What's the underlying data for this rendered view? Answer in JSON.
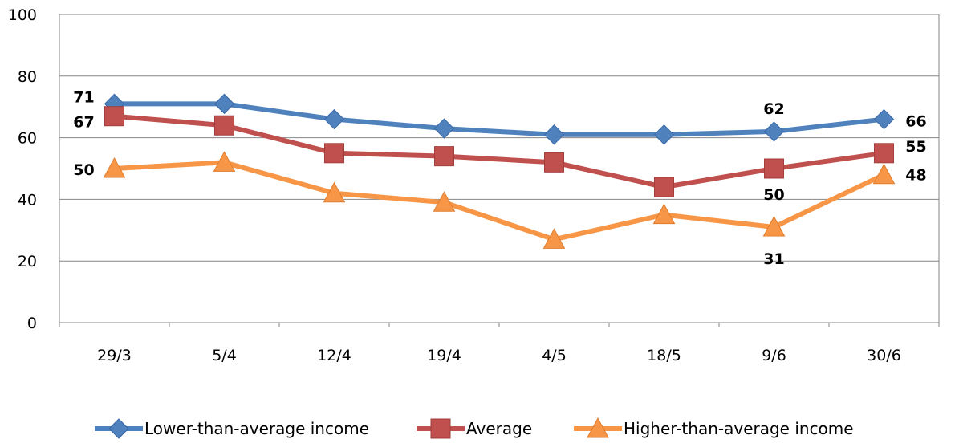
{
  "chart_data": {
    "type": "line",
    "title": "",
    "xlabel": "",
    "ylabel": "",
    "categories": [
      "29/3",
      "5/4",
      "12/4",
      "19/4",
      "4/5",
      "18/5",
      "9/6",
      "30/6"
    ],
    "ylim": [
      0,
      100
    ],
    "yticks": [
      0,
      20,
      40,
      60,
      80,
      100
    ],
    "grid": true,
    "legend": "bottom",
    "series": [
      {
        "name": "Lower-than-average income",
        "values": [
          71,
          71,
          66,
          63,
          61,
          61,
          62,
          66
        ],
        "color": "#4F81BD",
        "marker": "diamond",
        "labels": [
          {
            "index": 0,
            "text": "71"
          },
          {
            "index": 6,
            "text": "62"
          },
          {
            "index": 7,
            "text": "66"
          }
        ]
      },
      {
        "name": "Average",
        "values": [
          67,
          64,
          55,
          54,
          52,
          44,
          50,
          55
        ],
        "color": "#C0504D",
        "marker": "square",
        "labels": [
          {
            "index": 0,
            "text": "67"
          },
          {
            "index": 6,
            "text": "50"
          },
          {
            "index": 7,
            "text": "55"
          }
        ]
      },
      {
        "name": "Higher-than-average income",
        "values": [
          50,
          52,
          42,
          39,
          27,
          35,
          31,
          48
        ],
        "color": "#F79646",
        "marker": "triangle",
        "labels": [
          {
            "index": 0,
            "text": "50"
          },
          {
            "index": 6,
            "text": "31"
          },
          {
            "index": 7,
            "text": "48"
          }
        ]
      }
    ]
  }
}
